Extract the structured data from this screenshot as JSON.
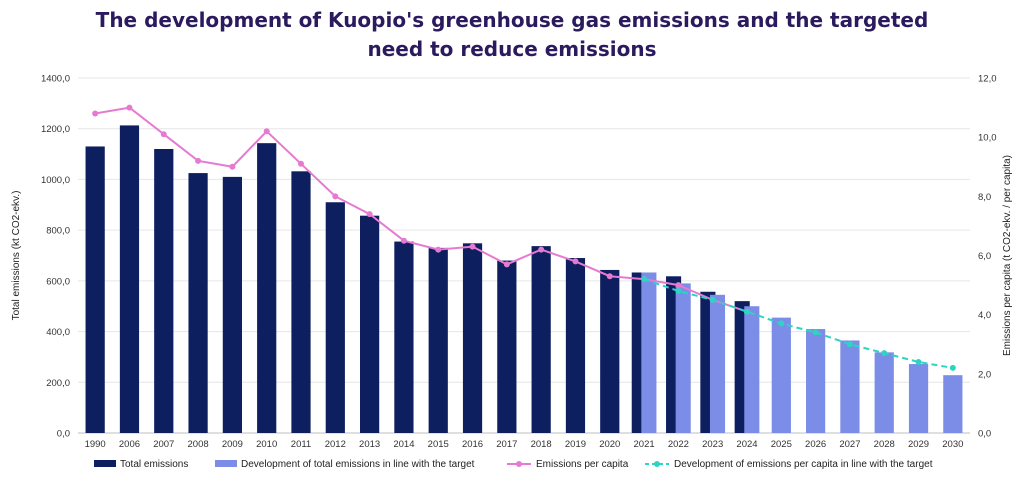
{
  "chart_data": {
    "type": "bar",
    "title": "The development of Kuopio's greenhouse gas emissions and the targeted\nneed to reduce emissions",
    "ylabel": "Total emissions (kt CO2-ekv.)",
    "y2label": "Emissions per capita (t CO2-ekv. / per capita)",
    "ylim": [
      0,
      1400
    ],
    "y2lim": [
      0,
      12
    ],
    "yticks": [
      "0,0",
      "200,0",
      "400,0",
      "600,0",
      "800,0",
      "1000,0",
      "1200,0",
      "1400,0"
    ],
    "y2ticks": [
      "0,0",
      "2,0",
      "4,0",
      "6,0",
      "8,0",
      "10,0",
      "12,0"
    ],
    "grid": true,
    "legend_position": "bottom",
    "categories": [
      "1990",
      "2006",
      "2007",
      "2008",
      "2009",
      "2010",
      "2011",
      "2012",
      "2013",
      "2014",
      "2015",
      "2016",
      "2017",
      "2018",
      "2019",
      "2020",
      "2021",
      "2022",
      "2023",
      "2024",
      "2025",
      "2026",
      "2027",
      "2028",
      "2029",
      "2030"
    ],
    "series": [
      {
        "name": "Total emissions",
        "kind": "bar",
        "axis": "left",
        "color": "#0d1f5e",
        "values": [
          1130,
          1213,
          1120,
          1025,
          1010,
          1143,
          1032,
          910,
          857,
          755,
          730,
          748,
          680,
          737,
          690,
          643,
          633,
          618,
          557,
          520,
          null,
          null,
          null,
          null,
          null,
          null
        ]
      },
      {
        "name": "Development of total emissions in line with the target",
        "kind": "bar",
        "axis": "left",
        "color": "#7b8de6",
        "values": [
          null,
          null,
          null,
          null,
          null,
          null,
          null,
          null,
          null,
          null,
          null,
          null,
          null,
          null,
          null,
          null,
          633,
          590,
          545,
          500,
          455,
          410,
          365,
          318,
          272,
          228
        ]
      },
      {
        "name": "Emissions per capita",
        "kind": "line",
        "axis": "right",
        "color": "#e67ad2",
        "values": [
          10.8,
          11.0,
          10.1,
          9.2,
          9.0,
          10.2,
          9.1,
          8.0,
          7.4,
          6.5,
          6.2,
          6.3,
          5.7,
          6.2,
          5.8,
          5.3,
          5.2,
          5.0,
          4.5,
          4.1,
          null,
          null,
          null,
          null,
          null,
          null
        ]
      },
      {
        "name": "Development of emissions per capita in line with the target",
        "kind": "line-dashed",
        "axis": "right",
        "color": "#2dd4c3",
        "values": [
          null,
          null,
          null,
          null,
          null,
          null,
          null,
          null,
          null,
          null,
          null,
          null,
          null,
          null,
          null,
          null,
          5.2,
          4.8,
          4.5,
          4.1,
          3.7,
          3.4,
          3.0,
          2.7,
          2.4,
          2.2
        ]
      }
    ]
  }
}
